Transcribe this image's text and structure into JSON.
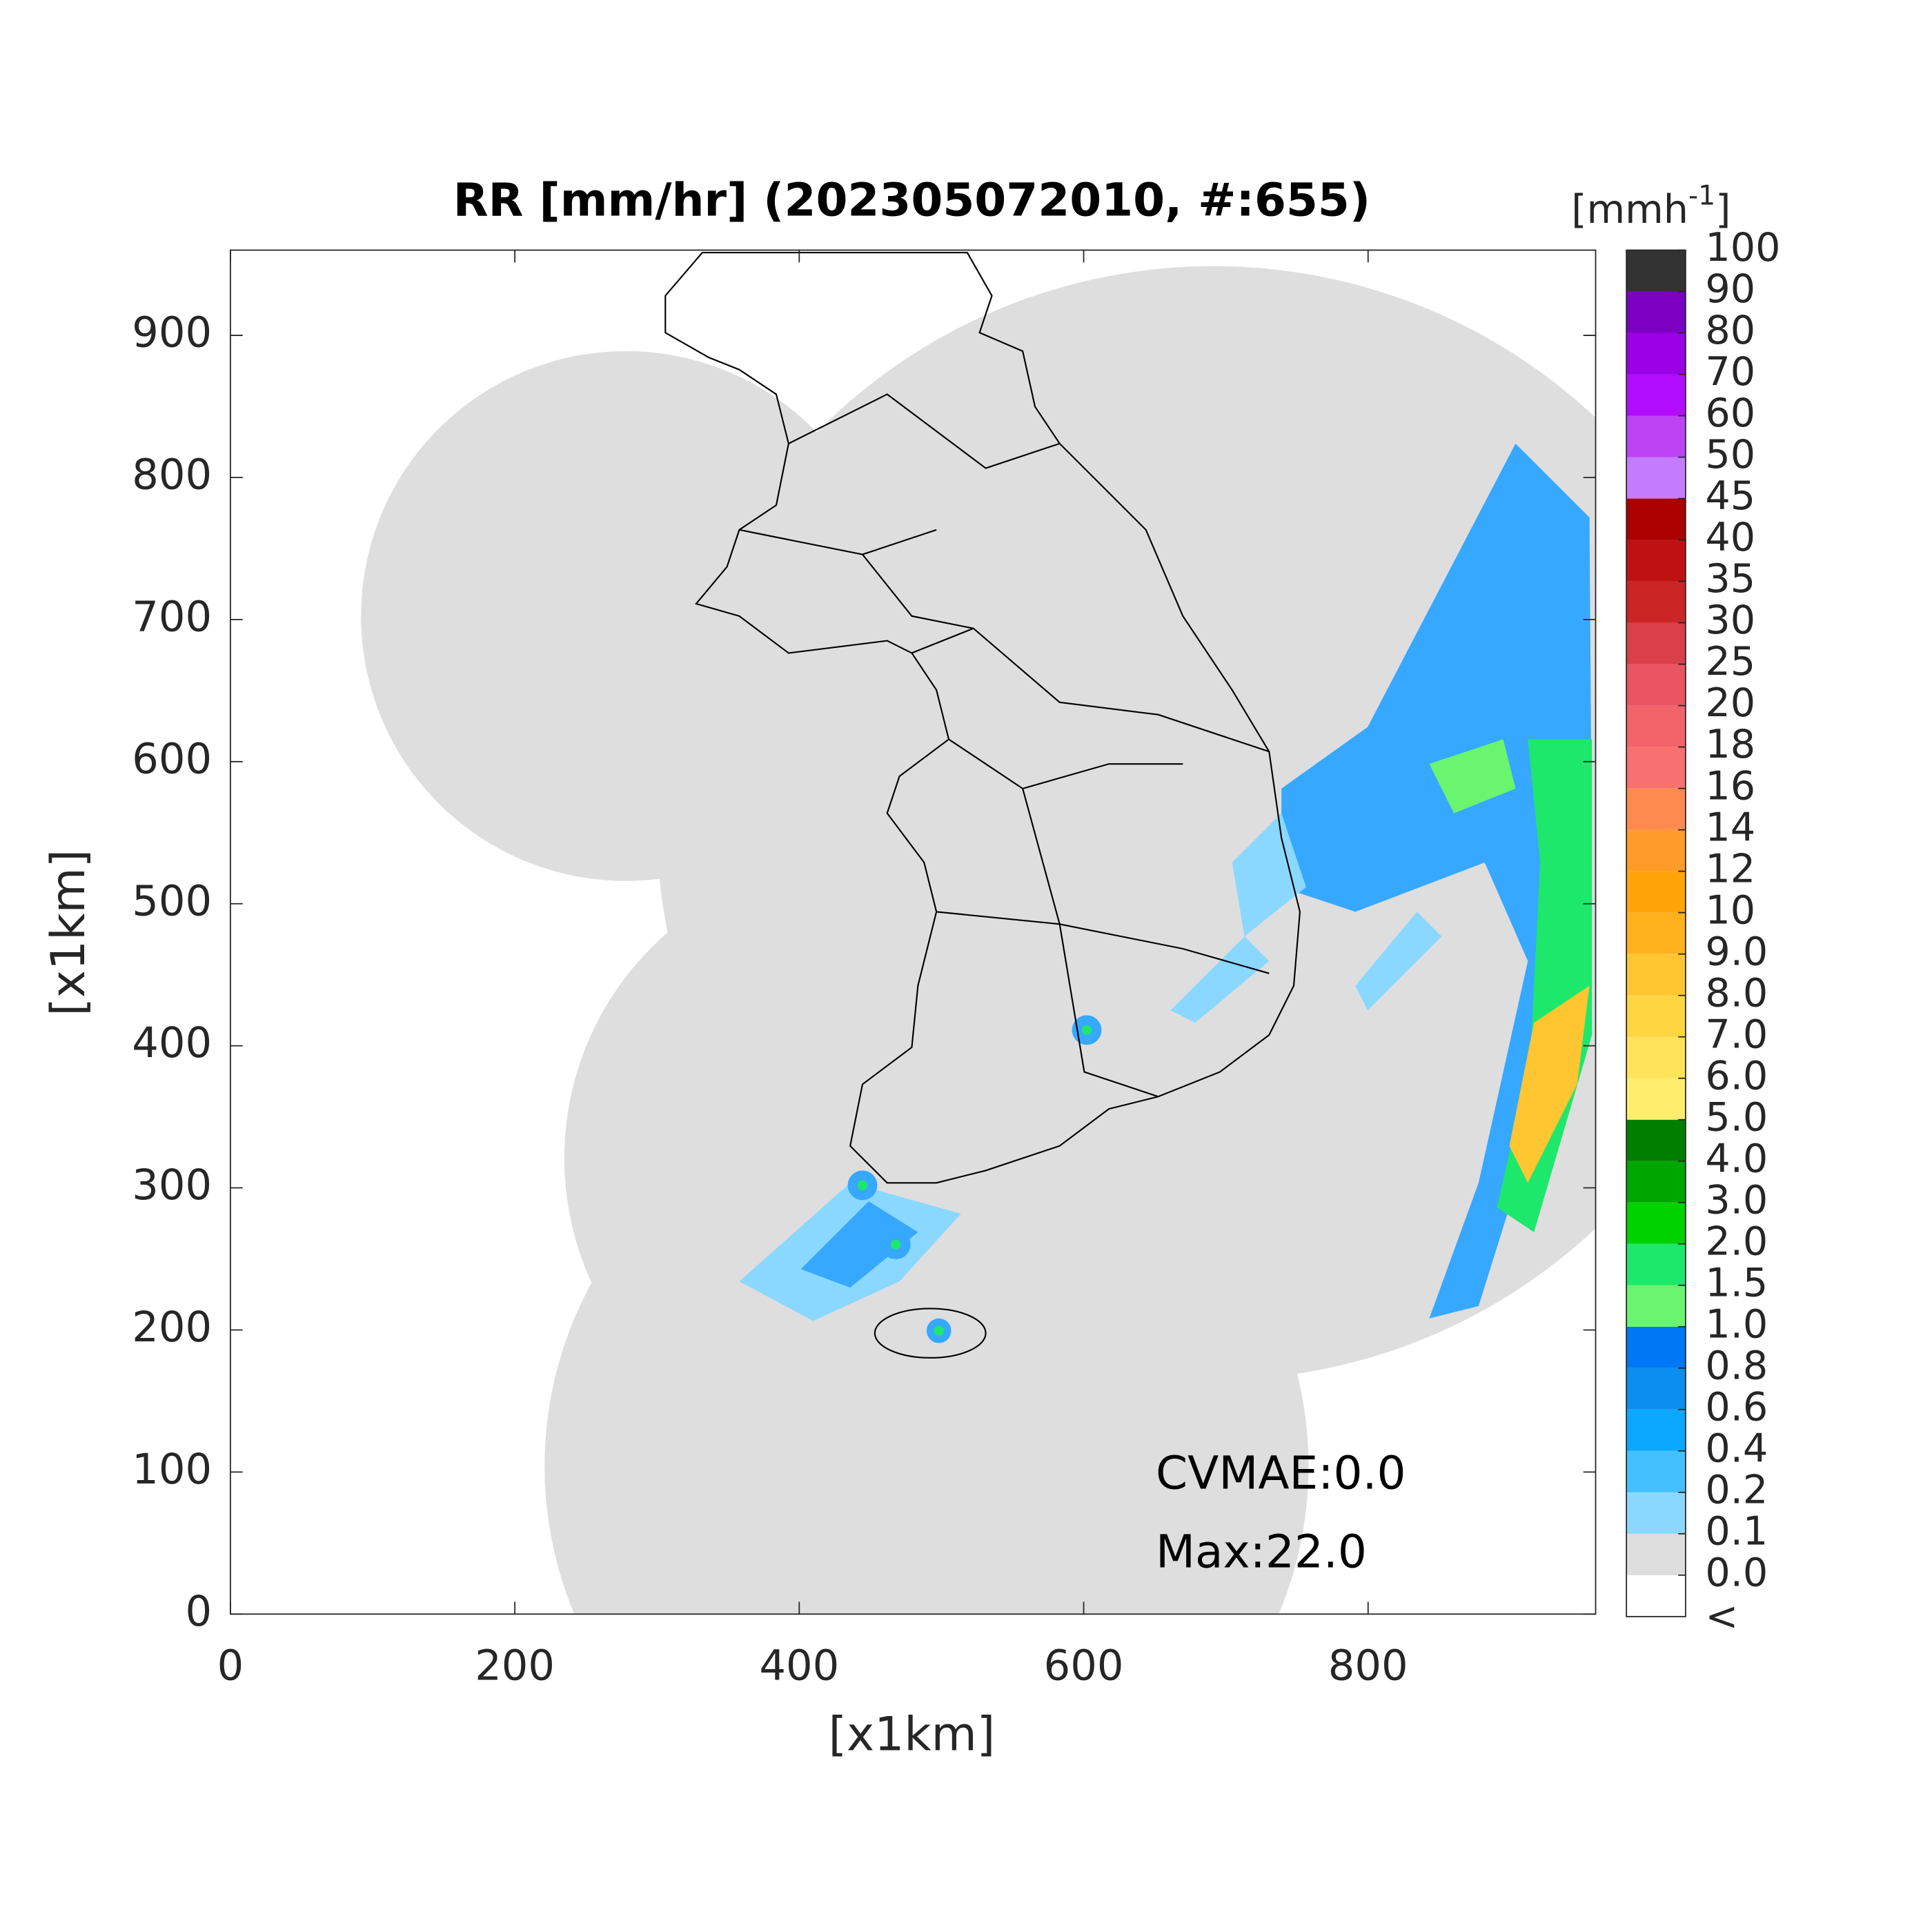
{
  "chart_data": {
    "type": "radar-map",
    "title": "RR [mm/hr] (202305072010, #:655)",
    "xlabel": "[x1km]",
    "ylabel": "[x1km]",
    "xlim": [
      0,
      960
    ],
    "ylim": [
      0,
      960
    ],
    "xticks": [
      0,
      200,
      400,
      600,
      800
    ],
    "yticks": [
      0,
      100,
      200,
      300,
      400,
      500,
      600,
      700,
      800,
      900
    ],
    "annotations": [
      "CVMAE:0.0",
      "Max:22.0"
    ],
    "colorbar": {
      "label_parts": [
        "[mmh",
        "-1",
        "]"
      ],
      "under_label": "<",
      "under_color": "#ffffff",
      "ticks": [
        {
          "value": 0,
          "label": "0.0"
        },
        0.1,
        0.2,
        0.4,
        0.6,
        0.8,
        {
          "value": 1,
          "label": "1.0"
        },
        1.5,
        {
          "value": 2,
          "label": "2.0"
        },
        {
          "value": 3,
          "label": "3.0"
        },
        {
          "value": 4,
          "label": "4.0"
        },
        {
          "value": 5,
          "label": "5.0"
        },
        {
          "value": 6,
          "label": "6.0"
        },
        {
          "value": 7,
          "label": "7.0"
        },
        {
          "value": 8,
          "label": "8.0"
        },
        {
          "value": 9,
          "label": "9.0"
        },
        10,
        12,
        14,
        16,
        18,
        20,
        25,
        30,
        35,
        40,
        45,
        50,
        60,
        70,
        80,
        90,
        100
      ],
      "colors": [
        "#dedede",
        "#8ad8ff",
        "#45c0ff",
        "#0ba8ff",
        "#0b8ef0",
        "#0077f5",
        "#69f56e",
        "#1de86b",
        "#00d200",
        "#00a600",
        "#007f00",
        "#ffee6e",
        "#ffe35a",
        "#ffd541",
        "#ffc632",
        "#ffb21e",
        "#ffa50a",
        "#ff9b28",
        "#ff8a50",
        "#f97070",
        "#f2636a",
        "#e95563",
        "#d9404a",
        "#cc2525",
        "#bf1111",
        "#aa0000",
        "#c47cff",
        "#bc44f5",
        "#b30dff",
        "#9a00e6",
        "#7c00c4",
        "#333333"
      ]
    }
  }
}
